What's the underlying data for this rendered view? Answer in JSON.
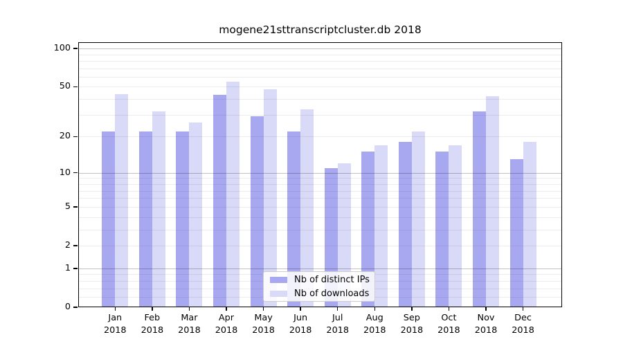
{
  "title": "mogene21sttranscriptcluster.db 2018",
  "chart_data": {
    "type": "bar",
    "title": "mogene21sttranscriptcluster.db 2018",
    "categories": [
      "Jan 2018",
      "Feb 2018",
      "Mar 2018",
      "Apr 2018",
      "May 2018",
      "Jun 2018",
      "Jul 2018",
      "Aug 2018",
      "Sep 2018",
      "Oct 2018",
      "Nov 2018",
      "Dec 2018"
    ],
    "series": [
      {
        "name": "Nb of distinct IPs",
        "color": "#a8a8f0",
        "values": [
          22,
          22,
          22,
          43,
          29,
          22,
          11,
          15,
          18,
          15,
          32,
          13
        ]
      },
      {
        "name": "Nb of downloads",
        "color": "#d9d9f8",
        "values": [
          44,
          32,
          26,
          55,
          48,
          33,
          12,
          17,
          22,
          17,
          42,
          18
        ]
      }
    ],
    "xlabel": "",
    "ylabel": "",
    "yscale": "log1p",
    "ylim": [
      0,
      112
    ],
    "yticks": [
      0,
      1,
      2,
      5,
      10,
      20,
      50,
      100
    ],
    "grid": true,
    "legend_position": "lower center"
  },
  "colors": {
    "background": "#ffffff",
    "axis": "#000000",
    "major_grid": "rgba(0,0,0,0.24)",
    "minor_grid": "rgba(0,0,0,0.07)",
    "legend_border": "#cccccc"
  }
}
